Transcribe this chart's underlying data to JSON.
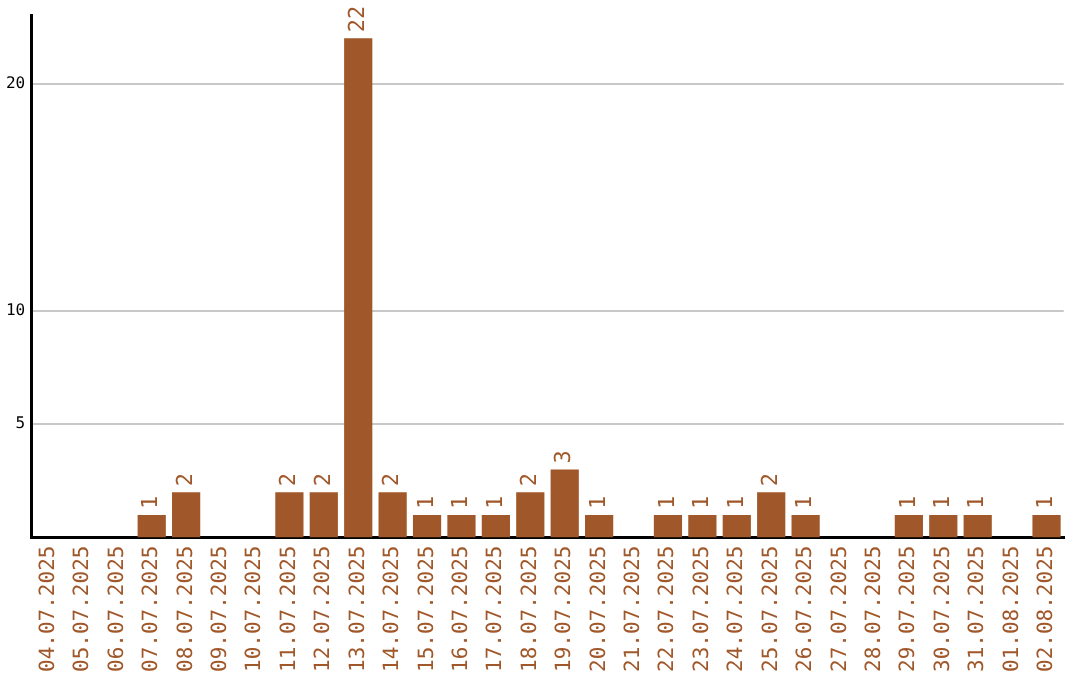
{
  "chart_data": {
    "type": "bar",
    "categories": [
      "04.07.2025",
      "05.07.2025",
      "06.07.2025",
      "07.07.2025",
      "08.07.2025",
      "09.07.2025",
      "10.07.2025",
      "11.07.2025",
      "12.07.2025",
      "13.07.2025",
      "14.07.2025",
      "15.07.2025",
      "16.07.2025",
      "17.07.2025",
      "18.07.2025",
      "19.07.2025",
      "20.07.2025",
      "21.07.2025",
      "22.07.2025",
      "23.07.2025",
      "24.07.2025",
      "25.07.2025",
      "26.07.2025",
      "27.07.2025",
      "28.07.2025",
      "29.07.2025",
      "30.07.2025",
      "31.07.2025",
      "01.08.2025",
      "02.08.2025"
    ],
    "values": [
      null,
      null,
      null,
      1,
      2,
      null,
      null,
      2,
      2,
      22,
      2,
      1,
      1,
      1,
      2,
      3,
      1,
      null,
      1,
      1,
      1,
      2,
      1,
      null,
      null,
      1,
      1,
      1,
      null,
      1
    ],
    "color": "#a0582a",
    "ylim": [
      0,
      23
    ],
    "yticks": [
      5,
      10,
      20
    ],
    "grid": "y",
    "data_labels": true,
    "legend": false
  }
}
